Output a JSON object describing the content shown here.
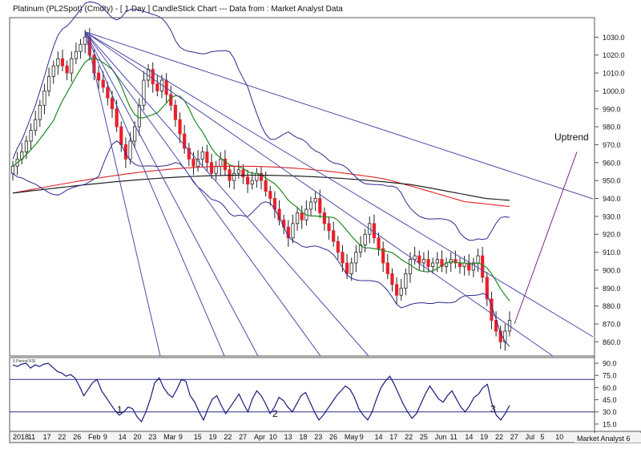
{
  "title": "Platinum (PL2Spot) (Cmdty) - [ 1 Day ] CandleStick Chart --- Data from : Market Analyst Data",
  "footer_brand": "Market Analyst 6",
  "colors": {
    "candle_up": "#ffffff",
    "candle_down": "#e8202a",
    "bollinger": "#2b2b8f",
    "sma_fast": "#1e8a1e",
    "sma_red": "#e02020",
    "sma_black": "#111111",
    "fan_lines": "#4b4ba8",
    "uptrend": "#7a2a8a",
    "rsi": "#1a1a7a"
  },
  "chart_data": [
    {
      "type": "candlestick",
      "title": "Platinum (PL2Spot) (Cmdty) - [ 1 Day ] CandleStick Chart --- Data from : Market Analyst Data",
      "ylim": [
        853,
        1040
      ],
      "y_ticks": [
        "1030.0",
        "1020.0",
        "1010.0",
        "1000.0",
        "990.0",
        "980.0",
        "970.0",
        "960.0",
        "950.0",
        "940.0",
        "930.0",
        "920.0",
        "910.0",
        "900.0",
        "890.0",
        "880.0",
        "870.0",
        "860.0"
      ],
      "x_labels": [
        "2018",
        "11",
        "17",
        "22",
        "26",
        "Feb",
        "9",
        "14",
        "20",
        "23",
        "Mar",
        "9",
        "15",
        "19",
        "22",
        "27",
        "Apr",
        "10",
        "13",
        "18",
        "23",
        "26",
        "May",
        "9",
        "14",
        "17",
        "22",
        "25",
        "Jun",
        "11",
        "14",
        "19",
        "22",
        "27",
        "Jul",
        "5",
        "10",
        "1"
      ],
      "annotations": [
        "Uptrend"
      ],
      "close": [
        958,
        962,
        966,
        972,
        978,
        984,
        992,
        1000,
        1008,
        1014,
        1018,
        1014,
        1010,
        1018,
        1022,
        1026,
        1030,
        1020,
        1010,
        1006,
        1002,
        996,
        990,
        980,
        970,
        962,
        972,
        980,
        992,
        1006,
        1012,
        1004,
        1000,
        1006,
        998,
        992,
        984,
        976,
        968,
        962,
        958,
        962,
        966,
        960,
        954,
        958,
        962,
        956,
        950,
        954,
        956,
        952,
        948,
        950,
        954,
        950,
        944,
        940,
        934,
        928,
        924,
        918,
        926,
        932,
        928,
        934,
        938,
        940,
        932,
        926,
        922,
        916,
        910,
        904,
        898,
        904,
        910,
        914,
        920,
        926,
        918,
        912,
        904,
        898,
        892,
        886,
        890,
        898,
        906,
        908,
        904,
        906,
        902,
        904,
        906,
        902,
        904,
        906,
        904,
        902,
        904,
        900,
        904,
        908,
        896,
        884,
        872,
        866,
        860,
        866,
        872
      ],
      "bollinger_upper": [
        970,
        985,
        1000,
        1012,
        1020,
        1026,
        1030,
        1032,
        1033,
        1033,
        1032,
        1030,
        1028,
        1026,
        1022,
        1018,
        1010,
        1000,
        990,
        982,
        976,
        970,
        964,
        958,
        952,
        948,
        945,
        943,
        941,
        940,
        939,
        937,
        936,
        935,
        933,
        931,
        929,
        927,
        925,
        924,
        922,
        921,
        920,
        919,
        918,
        917,
        916,
        915,
        914,
        913,
        912,
        911,
        910,
        910,
        911,
        912,
        913,
        914,
        915,
        916,
        917,
        918,
        919,
        920,
        921,
        922,
        923,
        924,
        925,
        925,
        925
      ],
      "rsi": {
        "ylim": [
          8,
          95
        ],
        "y_ticks": [
          "90.0",
          "75.0",
          "60.0",
          "45.0",
          "30.0",
          "15.0"
        ],
        "label": "5 Period RSI",
        "divergence_labels": [
          "1",
          "2",
          "3"
        ],
        "values": [
          88,
          86,
          89,
          90,
          84,
          88,
          86,
          89,
          90,
          85,
          80,
          78,
          74,
          76,
          72,
          62,
          50,
          58,
          66,
          70,
          56,
          48,
          40,
          32,
          26,
          30,
          36,
          34,
          24,
          18,
          30,
          46,
          66,
          72,
          60,
          52,
          48,
          58,
          70,
          68,
          50,
          42,
          30,
          20,
          34,
          46,
          50,
          38,
          28,
          36,
          44,
          52,
          40,
          30,
          46,
          56,
          50,
          40,
          28,
          36,
          48,
          44,
          36,
          30,
          40,
          50,
          54,
          42,
          30,
          20,
          26,
          34,
          42,
          50,
          56,
          62,
          58,
          48,
          34,
          26,
          20,
          30,
          46,
          60,
          68,
          74,
          64,
          52,
          40,
          30,
          22,
          28,
          40,
          52,
          62,
          54,
          46,
          42,
          50,
          56,
          46,
          36,
          30,
          38,
          48,
          52,
          60,
          64,
          40,
          26,
          20,
          28,
          38
        ]
      }
    }
  ]
}
